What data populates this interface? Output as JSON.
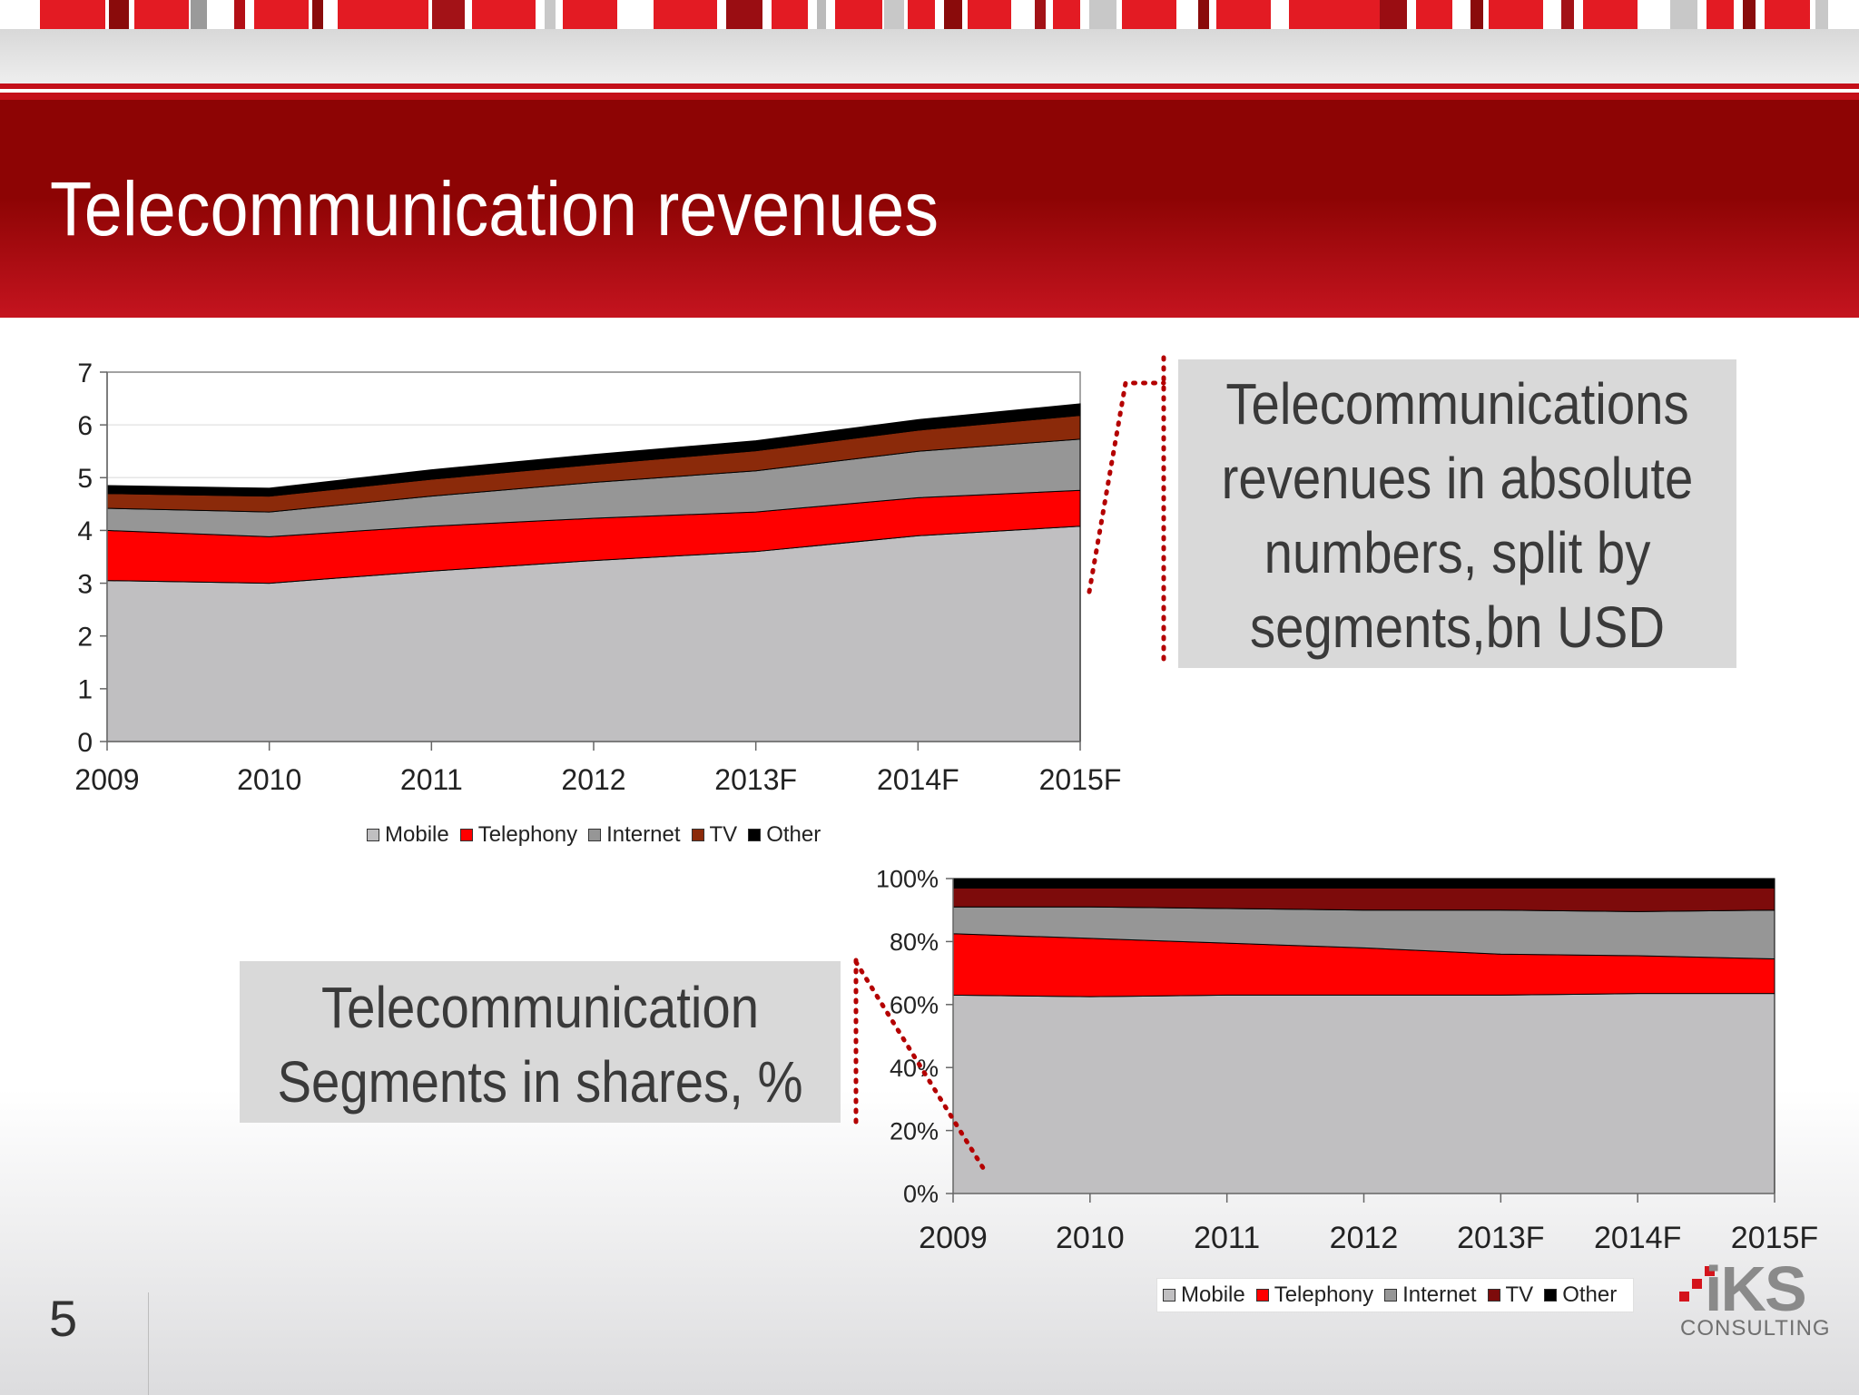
{
  "page": {
    "title": "Telecommunication revenues",
    "number": "5"
  },
  "callouts": {
    "absolute": [
      "Telecommunications",
      "revenues in absolute",
      "numbers, split by",
      "segments,bn USD"
    ],
    "shares": [
      "Telecommunication",
      "Segments in shares, %"
    ]
  },
  "logo": {
    "name": "iKS",
    "sub": "CONSULTING"
  },
  "colors": {
    "mobile": "#c0bfc1",
    "telephony": "#ff0000",
    "internet": "#969696",
    "tv_chart1": "#8b2a0a",
    "tv_chart2": "#7d0b0b",
    "other": "#000000",
    "header": "#8d0404"
  },
  "chart_data": [
    {
      "type": "area",
      "stacked": true,
      "x": [
        "2009",
        "2010",
        "2011",
        "2012",
        "2013F",
        "2014F",
        "2015F"
      ],
      "ylim": [
        0,
        7
      ],
      "yticks": [
        "0",
        "1",
        "2",
        "3",
        "4",
        "5",
        "6",
        "7"
      ],
      "grid": true,
      "legend_position": "bottom",
      "series": [
        {
          "name": "Mobile",
          "color": "#c0bfc1",
          "values": [
            3.05,
            3.0,
            3.23,
            3.43,
            3.6,
            3.9,
            4.08
          ]
        },
        {
          "name": "Telephony",
          "color": "#ff0000",
          "values": [
            0.95,
            0.88,
            0.85,
            0.8,
            0.75,
            0.72,
            0.68
          ]
        },
        {
          "name": "Internet",
          "color": "#969696",
          "values": [
            0.42,
            0.47,
            0.57,
            0.68,
            0.78,
            0.88,
            0.97
          ]
        },
        {
          "name": "TV",
          "color": "#8b2a0a",
          "values": [
            0.28,
            0.3,
            0.32,
            0.34,
            0.38,
            0.4,
            0.45
          ]
        },
        {
          "name": "Other",
          "color": "#000000",
          "values": [
            0.15,
            0.15,
            0.18,
            0.19,
            0.19,
            0.2,
            0.22
          ]
        }
      ]
    },
    {
      "type": "area",
      "stacked": true,
      "percent": true,
      "x": [
        "2009",
        "2010",
        "2011",
        "2012",
        "2013F",
        "2014F",
        "2015F"
      ],
      "ylim": [
        0,
        100
      ],
      "yticks": [
        "0%",
        "20%",
        "40%",
        "60%",
        "80%",
        "100%"
      ],
      "grid": false,
      "legend_position": "bottom",
      "series": [
        {
          "name": "Mobile",
          "color": "#c0bfc1",
          "values": [
            63,
            62.5,
            63,
            63,
            63,
            63.5,
            63.5
          ]
        },
        {
          "name": "Telephony",
          "color": "#ff0000",
          "values": [
            19.5,
            18.5,
            16.5,
            15,
            13,
            12,
            11
          ]
        },
        {
          "name": "Internet",
          "color": "#969696",
          "values": [
            8.5,
            10,
            11,
            12,
            14,
            14,
            15.5
          ]
        },
        {
          "name": "TV",
          "color": "#7d0b0b",
          "values": [
            6,
            6,
            6.5,
            7,
            7,
            7.5,
            7
          ]
        },
        {
          "name": "Other",
          "color": "#000000",
          "values": [
            3,
            3,
            3,
            3,
            3,
            3,
            3
          ]
        }
      ]
    }
  ]
}
